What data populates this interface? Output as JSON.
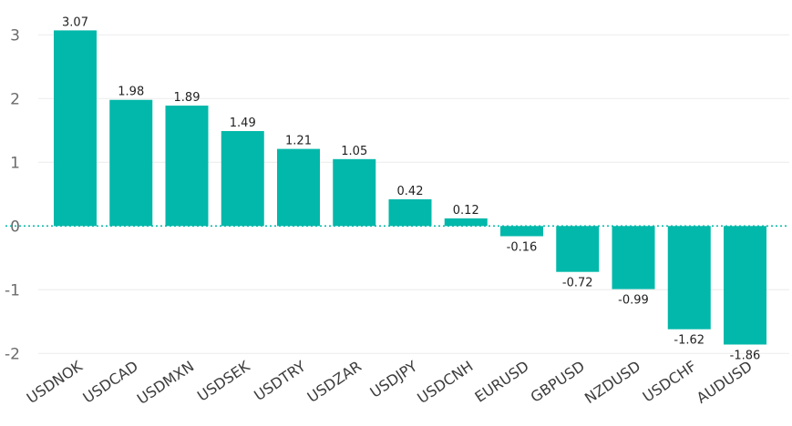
{
  "chart_data": {
    "type": "bar",
    "title": "",
    "xlabel": "",
    "ylabel": "",
    "categories": [
      "USDNOK",
      "USDCAD",
      "USDMXN",
      "USDSEK",
      "USDTRY",
      "USDZAR",
      "USDJPY",
      "USDCNH",
      "EURUSD",
      "GBPUSD",
      "NZDUSD",
      "USDCHF",
      "AUDUSD"
    ],
    "values": [
      3.07,
      1.98,
      1.89,
      1.49,
      1.21,
      1.05,
      0.42,
      0.12,
      -0.16,
      -0.72,
      -0.99,
      -1.62,
      -1.86
    ],
    "data_labels": [
      "3.07",
      "1.98",
      "1.89",
      "1.49",
      "1.21",
      "1.05",
      "0.42",
      "0.12",
      "-0.16",
      "-0.72",
      "-0.99",
      "-1.62",
      "-1.86"
    ],
    "ylim": [
      -2,
      3
    ],
    "yticks": [
      3,
      2,
      1,
      0,
      -1,
      -2
    ],
    "ytick_labels": [
      "3",
      "2",
      "1",
      "0",
      "-1",
      "-2"
    ],
    "grid": true,
    "zero_line": "dotted",
    "legend": "none",
    "colors": {
      "bar": "#01B8AA",
      "zero_line": "#01B8AA",
      "grid": "#ececec"
    }
  }
}
